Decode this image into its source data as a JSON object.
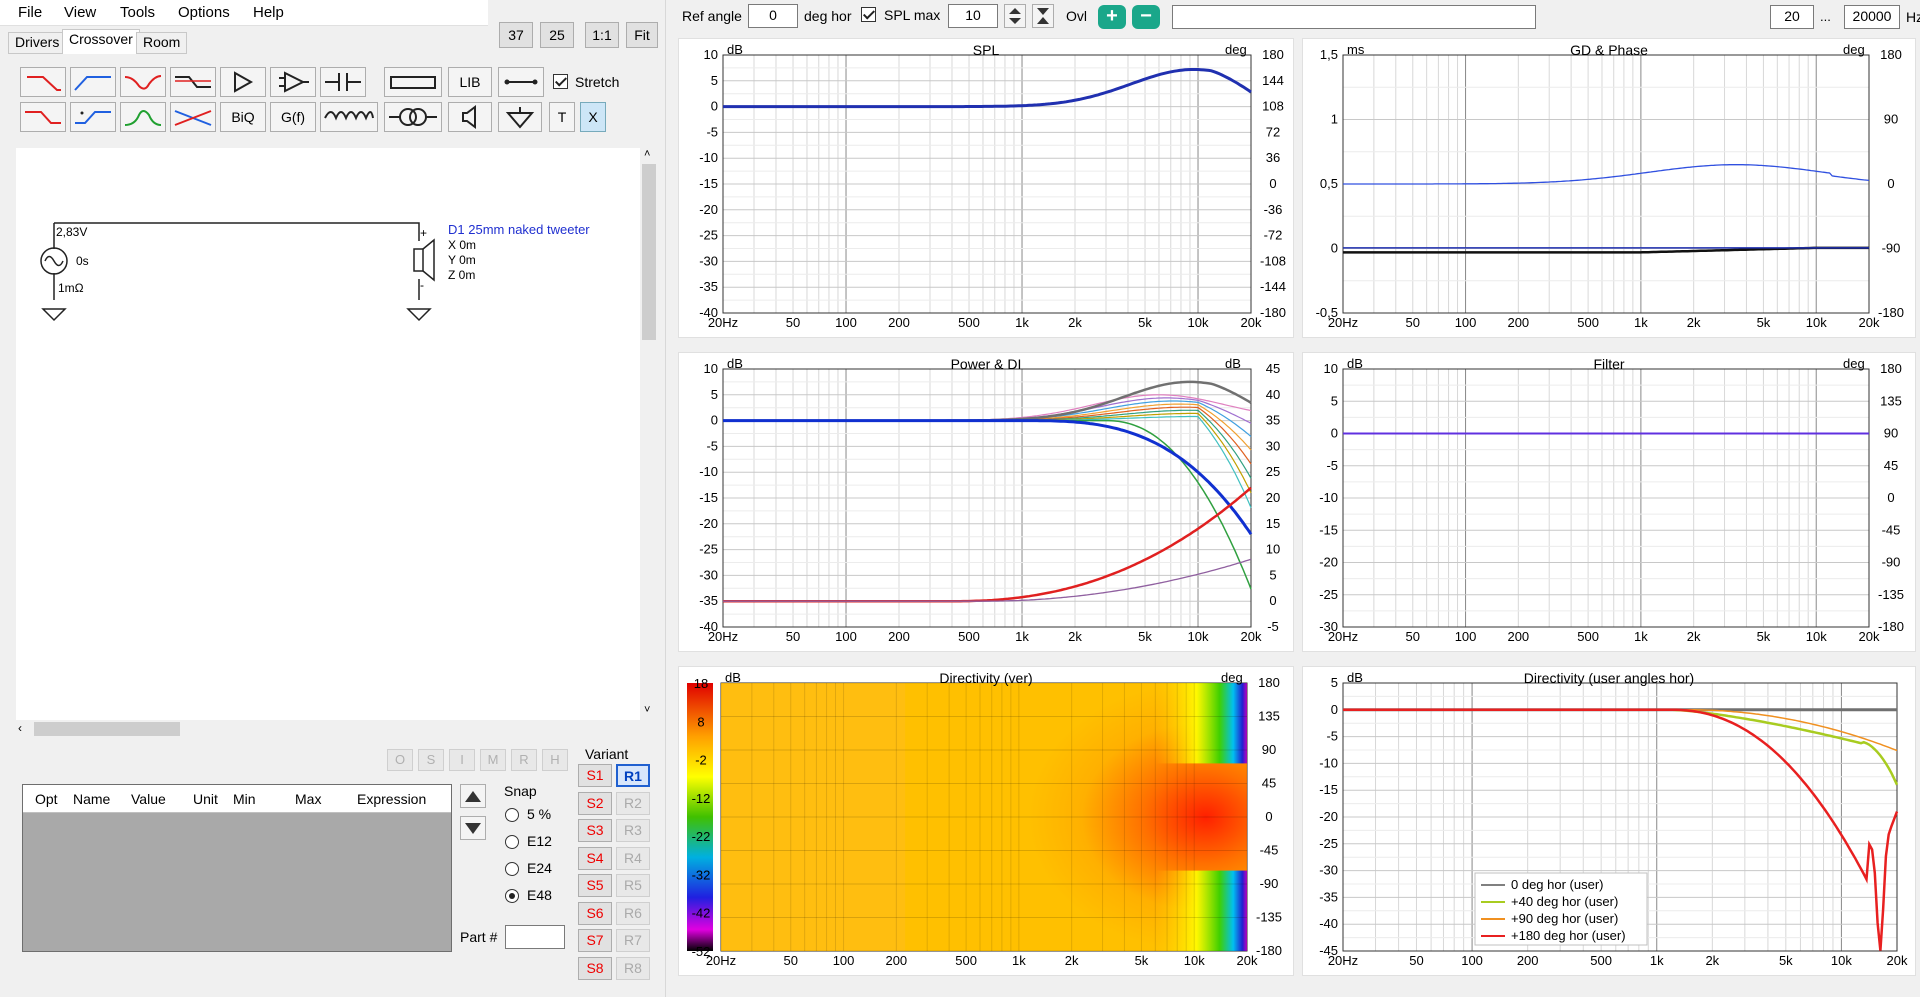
{
  "menu": {
    "file": "File",
    "view": "View",
    "tools": "Tools",
    "options": "Options",
    "help": "Help"
  },
  "tabs": {
    "drivers": "Drivers",
    "crossover": "Crossover",
    "room": "Room"
  },
  "zoom": {
    "b37": "37",
    "b25": "25",
    "b11": "1:1",
    "fit": "Fit"
  },
  "toolbar": {
    "lib": "LIB",
    "biq": "BiQ",
    "gf": "G(f)",
    "t": "T",
    "x": "X",
    "stretch": "Stretch",
    "stretch_checked": true
  },
  "schematic": {
    "voltage": "2,83V",
    "delay": "0s",
    "resistance": "1mΩ",
    "driver": "D1 25mm naked tweeter",
    "x": "X 0m",
    "y": "Y 0m",
    "z": "Z 0m",
    "plus": "+",
    "minus": "-"
  },
  "optbuttons": [
    "O",
    "S",
    "I",
    "M",
    "R",
    "H"
  ],
  "param_table": {
    "columns": [
      "Opt",
      "Name",
      "Value",
      "Unit",
      "Min",
      "Max",
      "Expression"
    ]
  },
  "snap": {
    "label": "Snap",
    "options": [
      "5 %",
      "E12",
      "E24",
      "E48"
    ],
    "selected": "E48"
  },
  "part": {
    "label": "Part #",
    "value": ""
  },
  "variant": {
    "label": "Variant",
    "s": [
      "S1",
      "S2",
      "S3",
      "S4",
      "S5",
      "S6",
      "S7",
      "S8"
    ],
    "r": [
      "R1",
      "R2",
      "R3",
      "R4",
      "R5",
      "R6",
      "R7",
      "R8"
    ],
    "selected": "R1"
  },
  "topbar": {
    "ref_angle_label": "Ref angle",
    "ref_angle": "0",
    "deg_hor": "deg hor",
    "spl_max_label": "SPL max",
    "spl_max_checked": true,
    "spl_max": "10",
    "ovl": "Ovl",
    "freq_min": "20",
    "ellipsis": "...",
    "freq_max": "20000",
    "hz": "Hz"
  },
  "freq_ticks": [
    "20Hz",
    "50",
    "100",
    "200",
    "500",
    "1k",
    "2k",
    "5k",
    "10k",
    "20k"
  ],
  "graphs": {
    "spl": {
      "title": "SPL",
      "left_unit": "dB",
      "right_unit": "deg",
      "left_ticks": [
        "10",
        "5",
        "0",
        "-5",
        "-10",
        "-15",
        "-20",
        "-25",
        "-30",
        "-35",
        "-40"
      ],
      "right_ticks": [
        "180",
        "144",
        "108",
        "72",
        "36",
        "0",
        "-36",
        "-72",
        "-108",
        "-144",
        "-180"
      ]
    },
    "gd": {
      "title": "GD & Phase",
      "left_unit": "ms",
      "right_unit": "deg",
      "left_ticks": [
        "1,5",
        "1",
        "0,5",
        "0",
        "-0,5"
      ],
      "right_ticks": [
        "180",
        "90",
        "0",
        "-90",
        "-180"
      ]
    },
    "power": {
      "title": "Power & DI",
      "left_unit": "dB",
      "right_unit": "dB",
      "left_ticks": [
        "10",
        "5",
        "0",
        "-5",
        "-10",
        "-15",
        "-20",
        "-25",
        "-30",
        "-35",
        "-40"
      ],
      "right_ticks": [
        "45",
        "40",
        "35",
        "30",
        "25",
        "20",
        "15",
        "10",
        "5",
        "0",
        "-5"
      ]
    },
    "filter": {
      "title": "Filter",
      "left_unit": "dB",
      "right_unit": "deg",
      "left_ticks": [
        "10",
        "5",
        "0",
        "-5",
        "-10",
        "-15",
        "-20",
        "-25",
        "-30"
      ],
      "right_ticks": [
        "180",
        "135",
        "90",
        "45",
        "0",
        "-45",
        "-90",
        "-135",
        "-180"
      ]
    },
    "dirver": {
      "title": "Directivity (ver)",
      "left_unit": "dB",
      "right_unit": "deg",
      "scale_ticks": [
        "18",
        "8",
        "-2",
        "-12",
        "-22",
        "-32",
        "-42",
        "-52"
      ],
      "right_ticks": [
        "180",
        "135",
        "90",
        "45",
        "0",
        "-45",
        "-90",
        "-135",
        "-180"
      ]
    },
    "dirhor": {
      "title": "Directivity (user angles hor)",
      "left_unit": "dB",
      "left_ticks": [
        "5",
        "0",
        "-5",
        "-10",
        "-15",
        "-20",
        "-25",
        "-30",
        "-35",
        "-40",
        "-45"
      ],
      "legend": [
        {
          "label": "0 deg hor (user)",
          "color": "#808080"
        },
        {
          "label": "+40 deg hor (user)",
          "color": "#a8cc20"
        },
        {
          "label": "+90 deg hor (user)",
          "color": "#f09020"
        },
        {
          "label": "+180 deg hor (user)",
          "color": "#e82020"
        }
      ]
    }
  }
}
